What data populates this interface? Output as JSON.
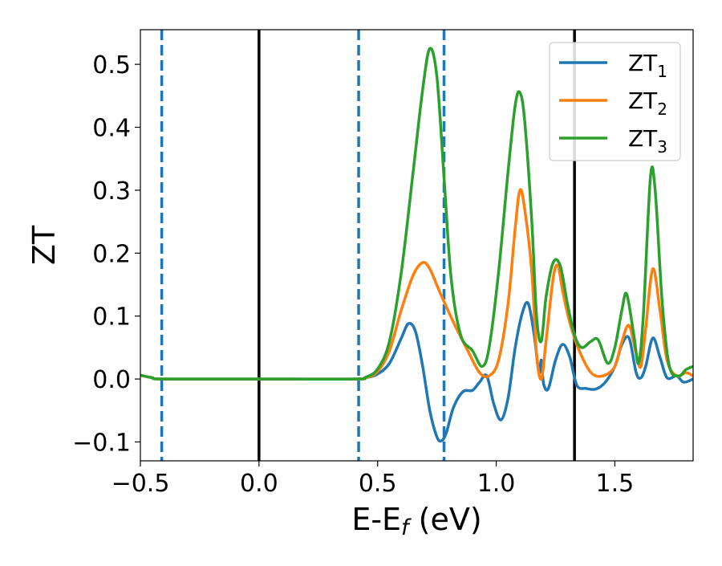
{
  "chart_data": {
    "type": "line",
    "xlabel": "E-E",
    "xlabel_sub": "f",
    "xlabel_unit": " (eV)",
    "ylabel": "ZT",
    "xlim": [
      -0.5,
      1.83
    ],
    "ylim": [
      -0.13,
      0.555
    ],
    "grid": false,
    "legend_position": "top-right",
    "xticks": [
      -0.5,
      0.0,
      0.5,
      1.0,
      1.5
    ],
    "xtick_labels": [
      "−0.5",
      "0.0",
      "0.5",
      "1.0",
      "1.5"
    ],
    "yticks": [
      -0.1,
      0.0,
      0.1,
      0.2,
      0.3,
      0.4,
      0.5
    ],
    "ytick_labels": [
      "−0.1",
      "0.0",
      "0.1",
      "0.2",
      "0.3",
      "0.4",
      "0.5"
    ],
    "vlines_dashed": {
      "color": "#1f77b4",
      "x": [
        -0.41,
        0.42,
        0.78
      ]
    },
    "vlines_solid": {
      "color": "#000000",
      "x": [
        0.0,
        1.33
      ]
    },
    "series": [
      {
        "name": "ZT",
        "name_sub": "1",
        "color": "#1f77b4",
        "points": [
          [
            -0.5,
            0.006
          ],
          [
            -0.45,
            0.002
          ],
          [
            -0.4,
            0.0
          ],
          [
            0.0,
            0.0
          ],
          [
            0.4,
            0.0
          ],
          [
            0.45,
            0.002
          ],
          [
            0.5,
            0.008
          ],
          [
            0.55,
            0.025
          ],
          [
            0.6,
            0.065
          ],
          [
            0.63,
            0.088
          ],
          [
            0.66,
            0.075
          ],
          [
            0.69,
            0.02
          ],
          [
            0.72,
            -0.05
          ],
          [
            0.75,
            -0.092
          ],
          [
            0.77,
            -0.098
          ],
          [
            0.79,
            -0.085
          ],
          [
            0.82,
            -0.045
          ],
          [
            0.86,
            -0.02
          ],
          [
            0.9,
            -0.018
          ],
          [
            0.93,
            -0.005
          ],
          [
            0.96,
            0.005
          ],
          [
            0.99,
            -0.04
          ],
          [
            1.02,
            -0.065
          ],
          [
            1.05,
            -0.03
          ],
          [
            1.08,
            0.05
          ],
          [
            1.11,
            0.105
          ],
          [
            1.135,
            0.12
          ],
          [
            1.16,
            0.07
          ],
          [
            1.18,
            0.01
          ],
          [
            1.19,
            0.03
          ],
          [
            1.2,
            -0.008
          ],
          [
            1.22,
            -0.015
          ],
          [
            1.25,
            0.03
          ],
          [
            1.28,
            0.055
          ],
          [
            1.31,
            0.035
          ],
          [
            1.34,
            -0.01
          ],
          [
            1.38,
            -0.015
          ],
          [
            1.42,
            -0.016
          ],
          [
            1.46,
            -0.005
          ],
          [
            1.5,
            0.02
          ],
          [
            1.53,
            0.055
          ],
          [
            1.56,
            0.065
          ],
          [
            1.59,
            0.01
          ],
          [
            1.61,
            0.002
          ],
          [
            1.63,
            0.02
          ],
          [
            1.66,
            0.065
          ],
          [
            1.69,
            0.035
          ],
          [
            1.72,
            0.002
          ],
          [
            1.76,
            0.005
          ],
          [
            1.79,
            -0.005
          ],
          [
            1.83,
            0.0
          ]
        ]
      },
      {
        "name": "ZT",
        "name_sub": "2",
        "color": "#ff7f0e",
        "points": [
          [
            -0.5,
            0.006
          ],
          [
            -0.45,
            0.002
          ],
          [
            -0.4,
            0.0
          ],
          [
            0.0,
            0.0
          ],
          [
            0.4,
            0.0
          ],
          [
            0.45,
            0.002
          ],
          [
            0.5,
            0.012
          ],
          [
            0.55,
            0.045
          ],
          [
            0.6,
            0.11
          ],
          [
            0.65,
            0.165
          ],
          [
            0.69,
            0.185
          ],
          [
            0.72,
            0.175
          ],
          [
            0.76,
            0.14
          ],
          [
            0.82,
            0.09
          ],
          [
            0.88,
            0.045
          ],
          [
            0.93,
            0.01
          ],
          [
            0.97,
            0.005
          ],
          [
            1.01,
            0.03
          ],
          [
            1.05,
            0.12
          ],
          [
            1.08,
            0.24
          ],
          [
            1.1,
            0.3
          ],
          [
            1.12,
            0.27
          ],
          [
            1.15,
            0.17
          ],
          [
            1.17,
            0.04
          ],
          [
            1.19,
            0.0
          ],
          [
            1.21,
            0.06
          ],
          [
            1.24,
            0.16
          ],
          [
            1.26,
            0.18
          ],
          [
            1.28,
            0.14
          ],
          [
            1.31,
            0.09
          ],
          [
            1.35,
            0.045
          ],
          [
            1.4,
            0.01
          ],
          [
            1.45,
            0.005
          ],
          [
            1.5,
            0.02
          ],
          [
            1.53,
            0.06
          ],
          [
            1.56,
            0.085
          ],
          [
            1.59,
            0.04
          ],
          [
            1.61,
            0.02
          ],
          [
            1.63,
            0.08
          ],
          [
            1.66,
            0.175
          ],
          [
            1.69,
            0.11
          ],
          [
            1.72,
            0.03
          ],
          [
            1.76,
            0.005
          ],
          [
            1.8,
            0.01
          ],
          [
            1.83,
            0.005
          ]
        ]
      },
      {
        "name": "ZT",
        "name_sub": "3",
        "color": "#2ca02c",
        "points": [
          [
            -0.5,
            0.006
          ],
          [
            -0.45,
            0.002
          ],
          [
            -0.4,
            0.0
          ],
          [
            0.0,
            0.0
          ],
          [
            0.4,
            0.0
          ],
          [
            0.45,
            0.003
          ],
          [
            0.5,
            0.016
          ],
          [
            0.55,
            0.06
          ],
          [
            0.6,
            0.17
          ],
          [
            0.65,
            0.33
          ],
          [
            0.69,
            0.46
          ],
          [
            0.72,
            0.525
          ],
          [
            0.75,
            0.48
          ],
          [
            0.78,
            0.32
          ],
          [
            0.81,
            0.16
          ],
          [
            0.85,
            0.07
          ],
          [
            0.9,
            0.045
          ],
          [
            0.94,
            0.02
          ],
          [
            0.97,
            0.05
          ],
          [
            1.01,
            0.17
          ],
          [
            1.05,
            0.33
          ],
          [
            1.08,
            0.435
          ],
          [
            1.1,
            0.455
          ],
          [
            1.12,
            0.41
          ],
          [
            1.15,
            0.25
          ],
          [
            1.17,
            0.1
          ],
          [
            1.19,
            0.06
          ],
          [
            1.21,
            0.13
          ],
          [
            1.24,
            0.185
          ],
          [
            1.27,
            0.18
          ],
          [
            1.3,
            0.12
          ],
          [
            1.33,
            0.07
          ],
          [
            1.36,
            0.05
          ],
          [
            1.4,
            0.06
          ],
          [
            1.43,
            0.062
          ],
          [
            1.47,
            0.025
          ],
          [
            1.5,
            0.05
          ],
          [
            1.53,
            0.11
          ],
          [
            1.55,
            0.135
          ],
          [
            1.58,
            0.07
          ],
          [
            1.6,
            0.025
          ],
          [
            1.62,
            0.1
          ],
          [
            1.65,
            0.32
          ],
          [
            1.67,
            0.3
          ],
          [
            1.7,
            0.12
          ],
          [
            1.73,
            0.02
          ],
          [
            1.77,
            0.005
          ],
          [
            1.8,
            0.015
          ],
          [
            1.83,
            0.02
          ]
        ]
      }
    ]
  }
}
